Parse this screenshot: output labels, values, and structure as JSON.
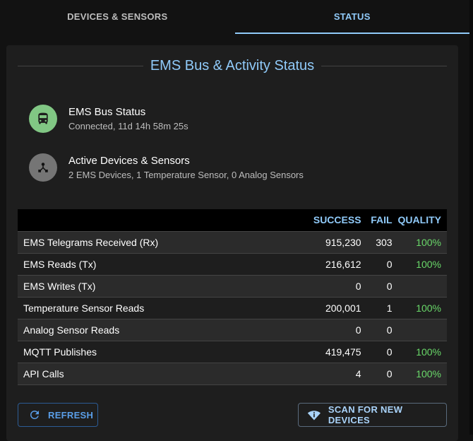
{
  "tabs": [
    {
      "label": "DEVICES & SENSORS",
      "active": false
    },
    {
      "label": "STATUS",
      "active": true
    }
  ],
  "card": {
    "title": "EMS Bus & Activity Status",
    "items": [
      {
        "icon": "bus-icon",
        "title": "EMS Bus Status",
        "subtitle": "Connected, 11d 14h 58m 25s",
        "color": "#81c784"
      },
      {
        "icon": "device-hub-icon",
        "title": "Active Devices & Sensors",
        "subtitle": "2 EMS Devices, 1 Temperature Sensor, 0 Analog Sensors",
        "color": "#757575"
      }
    ],
    "table": {
      "headers": [
        "",
        "SUCCESS",
        "FAIL",
        "QUALITY"
      ],
      "rows": [
        [
          "EMS Telegrams Received (Rx)",
          "915,230",
          "303",
          "100%"
        ],
        [
          "EMS Reads (Tx)",
          "216,612",
          "0",
          "100%"
        ],
        [
          "EMS Writes (Tx)",
          "0",
          "0",
          ""
        ],
        [
          "Temperature Sensor Reads",
          "200,001",
          "1",
          "100%"
        ],
        [
          "Analog Sensor Reads",
          "0",
          "0",
          ""
        ],
        [
          "MQTT Publishes",
          "419,475",
          "0",
          "100%"
        ],
        [
          "API Calls",
          "4",
          "0",
          "100%"
        ]
      ]
    },
    "buttons": {
      "refresh": "REFRESH",
      "scan": "SCAN FOR NEW DEVICES"
    }
  }
}
